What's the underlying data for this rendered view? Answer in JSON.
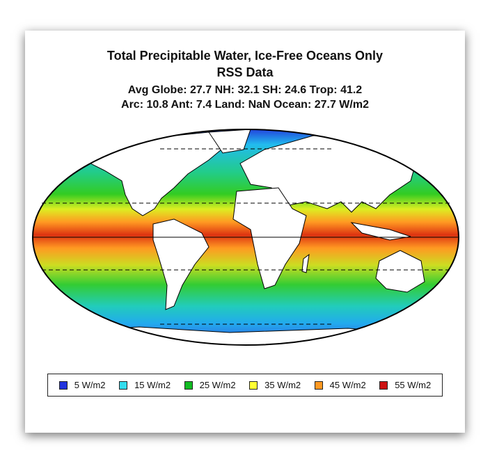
{
  "title": {
    "line1": "Total Precipitable Water, Ice-Free Oceans Only",
    "line2": "RSS Data",
    "stats1": "Avg Globe: 27.7  NH: 32.1  SH: 24.6  Trop: 41.2",
    "stats2": "Arc: 10.8  Ant: 7.4  Land: NaN Ocean: 27.7 W/m2"
  },
  "legend": [
    {
      "label": "5 W/m2",
      "color": "#2233dd"
    },
    {
      "label": "15 W/m2",
      "color": "#33ddee"
    },
    {
      "label": "25 W/m2",
      "color": "#11bb22"
    },
    {
      "label": "35 W/m2",
      "color": "#ffff33"
    },
    {
      "label": "45 W/m2",
      "color": "#ff9922"
    },
    {
      "label": "55 W/m2",
      "color": "#cc1111"
    }
  ]
}
